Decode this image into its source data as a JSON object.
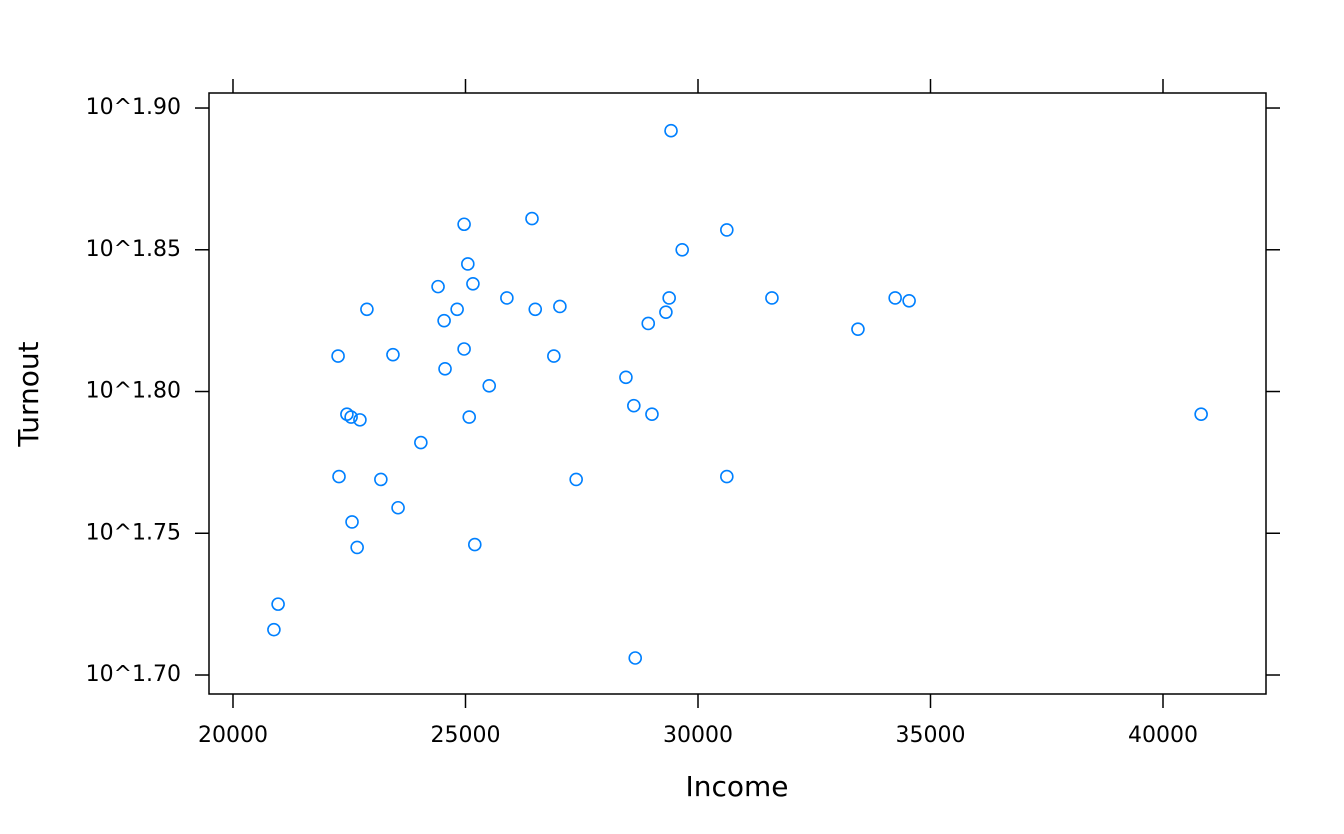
{
  "chart_data": {
    "type": "scatter",
    "xlabel": "Income",
    "ylabel": "Turnout",
    "series": [
      {
        "color": "#0080ff",
        "x": [
          29420,
          26430,
          30620,
          24970,
          29660,
          25050,
          25160,
          24410,
          25890,
          29380,
          31590,
          34240,
          34540,
          22880,
          24820,
          26500,
          27030,
          29310,
          24540,
          28930,
          33440,
          22260,
          23440,
          24970,
          26900,
          24560,
          28450,
          25510,
          28620,
          22450,
          22540,
          22730,
          25080,
          29010,
          40820,
          24040,
          22280,
          23180,
          27380,
          30620,
          23550,
          22560,
          22670,
          25200,
          20970,
          20880,
          28650
        ],
        "values": [
          1.892,
          1.861,
          1.857,
          1.859,
          1.85,
          1.845,
          1.838,
          1.837,
          1.833,
          1.833,
          1.833,
          1.833,
          1.832,
          1.829,
          1.829,
          1.829,
          1.83,
          1.828,
          1.825,
          1.824,
          1.822,
          1.8125,
          1.813,
          1.815,
          1.8125,
          1.808,
          1.805,
          1.802,
          1.795,
          1.792,
          1.791,
          1.79,
          1.791,
          1.792,
          1.792,
          1.782,
          1.77,
          1.769,
          1.769,
          1.77,
          1.759,
          1.754,
          1.745,
          1.746,
          1.725,
          1.716,
          1.706
        ]
      }
    ],
    "xlim": [
      19484,
      42215
    ],
    "ylim": [
      1.6933,
      1.9053
    ],
    "xticks": [
      20000,
      25000,
      30000,
      35000,
      40000
    ],
    "yticks": [
      {
        "value": 1.7,
        "label": "10^1.70"
      },
      {
        "value": 1.75,
        "label": "10^1.75"
      },
      {
        "value": 1.8,
        "label": "10^1.80"
      },
      {
        "value": 1.85,
        "label": "10^1.85"
      },
      {
        "value": 1.9,
        "label": "10^1.90"
      }
    ]
  }
}
